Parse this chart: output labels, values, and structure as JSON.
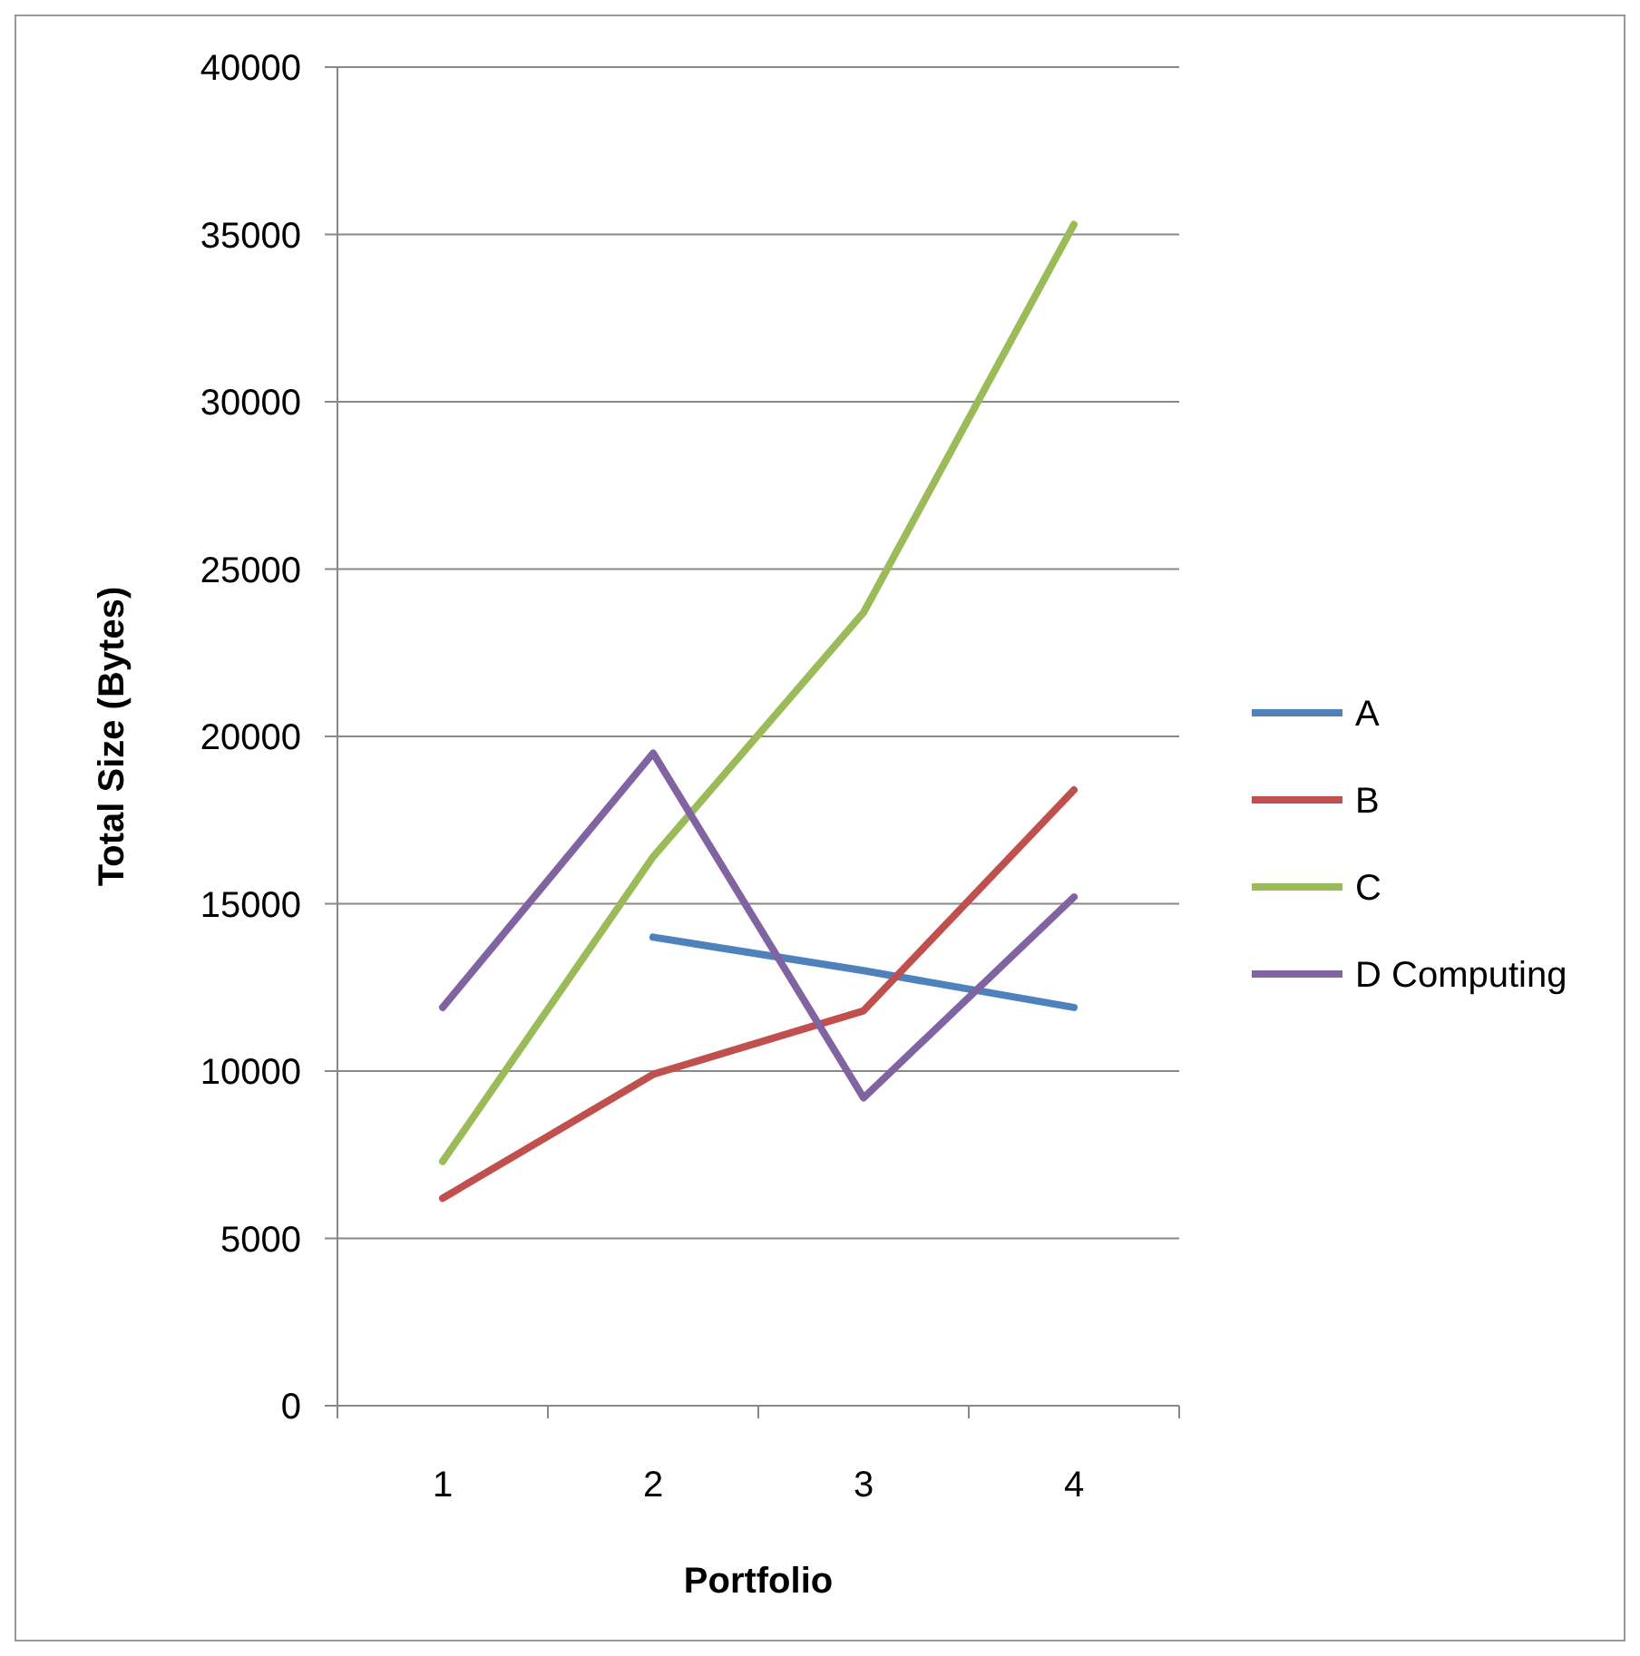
{
  "chart_data": {
    "type": "line",
    "xlabel": "Portfolio",
    "ylabel": "Total Size (Bytes)",
    "categories": [
      "1",
      "2",
      "3",
      "4"
    ],
    "series": [
      {
        "name": "A",
        "color": "#4f81bd",
        "values": [
          null,
          14000,
          13000,
          11900
        ]
      },
      {
        "name": "B",
        "color": "#c0504d",
        "values": [
          6200,
          9900,
          11800,
          18400
        ]
      },
      {
        "name": "C",
        "color": "#9bbb59",
        "values": [
          7300,
          16400,
          23700,
          35300
        ]
      },
      {
        "name": "D Computing",
        "color": "#8064a2",
        "values": [
          11900,
          19500,
          9200,
          15200
        ]
      }
    ],
    "ylim": [
      0,
      40000
    ],
    "yticks": [
      0,
      5000,
      10000,
      15000,
      20000,
      25000,
      30000,
      35000,
      40000
    ],
    "grid": "y",
    "legend": "right",
    "marker": "none",
    "line_style": "solid"
  }
}
